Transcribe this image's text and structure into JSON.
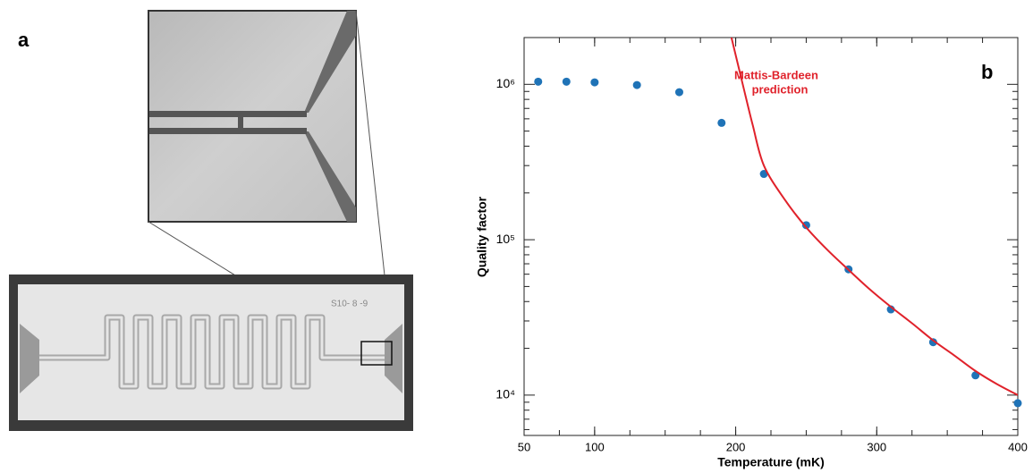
{
  "panel_a": {
    "label": "a",
    "chip_text": "S10- 8 -9"
  },
  "chart_data": {
    "type": "scatter",
    "label": "b",
    "x_label": "Temperature (mK)",
    "y_label": "Quality factor",
    "annotation": [
      "Mattis-Bardeen",
      "prediction"
    ],
    "xlim": [
      50,
      400
    ],
    "ylim": [
      5500,
      2000000
    ],
    "log_y": true,
    "xticks": [
      50,
      100,
      200,
      300,
      400
    ],
    "yticks": [
      {
        "value": 10000,
        "label": "10⁴"
      },
      {
        "value": 100000,
        "label": "10⁵"
      },
      {
        "value": 1000000,
        "label": "10⁶"
      }
    ],
    "series": [
      {
        "style": "markers",
        "color": "#1f73b7",
        "x": [
          60,
          80,
          100,
          130,
          160,
          190,
          220,
          250,
          280,
          310,
          340,
          370,
          400
        ],
        "values": [
          1040000,
          1040000,
          1030000,
          990000,
          890000,
          565000,
          265000,
          124000,
          64500,
          35600,
          21900,
          13400,
          8870
        ]
      },
      {
        "style": "line",
        "color": "#e0222b",
        "x": [
          197,
          205,
          212,
          220,
          235,
          250,
          265,
          280,
          295,
          310,
          325,
          340,
          355,
          370,
          385,
          400
        ],
        "values": [
          2000000,
          1000000,
          550000,
          300000,
          180000,
          120000,
          86000,
          64000,
          48000,
          37000,
          29000,
          22500,
          18000,
          14300,
          11800,
          10000
        ]
      }
    ]
  }
}
